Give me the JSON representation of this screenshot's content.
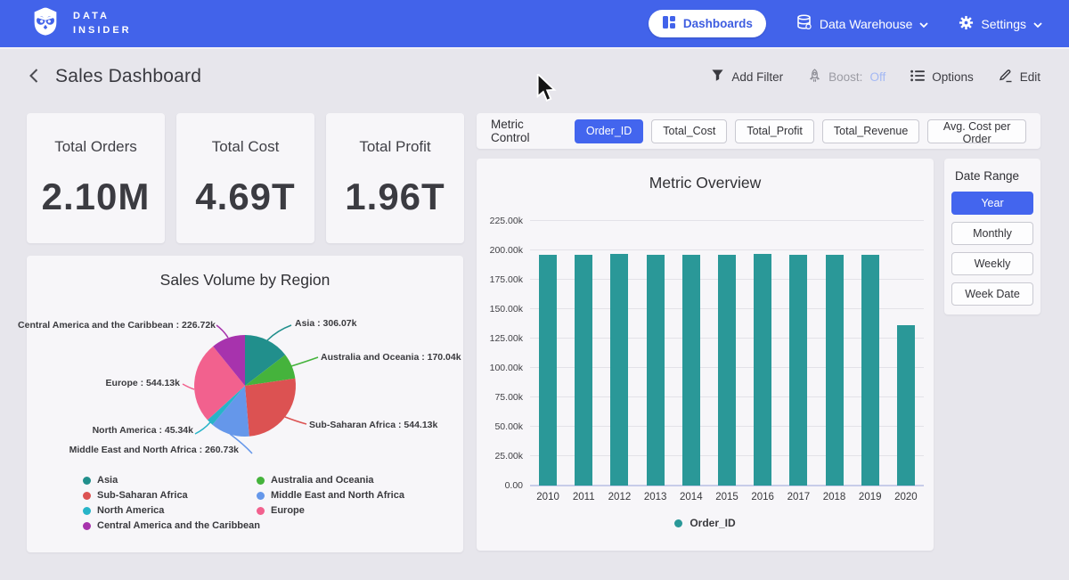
{
  "navbar": {
    "brand_line1": "DATA",
    "brand_line2": "INSIDER",
    "dashboards_label": "Dashboards",
    "data_warehouse_label": "Data Warehouse",
    "settings_label": "Settings"
  },
  "header": {
    "title": "Sales Dashboard",
    "add_filter_label": "Add Filter",
    "boost_label": "Boost:",
    "boost_value": "Off",
    "options_label": "Options",
    "edit_label": "Edit"
  },
  "kpis": [
    {
      "label": "Total Orders",
      "value": "2.10M"
    },
    {
      "label": "Total Cost",
      "value": "4.69T"
    },
    {
      "label": "Total Profit",
      "value": "1.96T"
    }
  ],
  "metric_control": {
    "label": "Metric Control",
    "options": [
      {
        "label": "Order_ID",
        "selected": true
      },
      {
        "label": "Total_Cost",
        "selected": false
      },
      {
        "label": "Total_Profit",
        "selected": false
      },
      {
        "label": "Total_Revenue",
        "selected": false
      },
      {
        "label": "Avg. Cost per Order",
        "selected": false
      }
    ]
  },
  "date_range": {
    "label": "Date Range",
    "options": [
      {
        "label": "Year",
        "selected": true
      },
      {
        "label": "Monthly",
        "selected": false
      },
      {
        "label": "Weekly",
        "selected": false
      },
      {
        "label": "Week Date",
        "selected": false
      }
    ]
  },
  "chart_data": [
    {
      "type": "pie",
      "title": "Sales Volume by Region",
      "unit": "k",
      "slices": [
        {
          "label": "Asia",
          "value": 306.07,
          "display": "Asia : 306.07k",
          "color": "#218f8c"
        },
        {
          "label": "Australia and Oceania",
          "value": 170.04,
          "display": "Australia and Oceania : 170.04k",
          "color": "#45b33c"
        },
        {
          "label": "Sub-Saharan Africa",
          "value": 544.13,
          "display": "Sub-Saharan Africa : 544.13k",
          "color": "#dc5252"
        },
        {
          "label": "Middle East and North Africa",
          "value": 260.73,
          "display": "Middle East and North Africa : 260.73k",
          "color": "#6597ea"
        },
        {
          "label": "North America",
          "value": 45.34,
          "display": "North America : 45.34k",
          "color": "#27b4c8"
        },
        {
          "label": "Europe",
          "value": 544.13,
          "display": "Europe : 544.13k",
          "color": "#f2618e"
        },
        {
          "label": "Central America and the Caribbean",
          "value": 226.72,
          "display": "Central America and the Caribbean : 226.72k",
          "color": "#a733ad"
        }
      ],
      "legend_columns": [
        [
          "Asia",
          "Sub-Saharan Africa",
          "North America",
          "Central America and the Caribbean"
        ],
        [
          "Australia and Oceania",
          "Middle East and North Africa",
          "Europe"
        ]
      ],
      "legend_position": "bottom"
    },
    {
      "type": "bar",
      "title": "Metric Overview",
      "categories": [
        "2010",
        "2011",
        "2012",
        "2013",
        "2014",
        "2015",
        "2016",
        "2017",
        "2018",
        "2019",
        "2020"
      ],
      "series": [
        {
          "name": "Order_ID",
          "color": "#2a9898",
          "values": [
            196.2,
            196.0,
            196.8,
            195.9,
            196.0,
            195.9,
            196.7,
            196.1,
            195.9,
            196.0,
            136.4
          ]
        }
      ],
      "unit": "k",
      "xlabel": "",
      "ylabel": "",
      "ylim": [
        0,
        225
      ],
      "ytick_step": 25,
      "yticks": [
        "0.00",
        "25.00k",
        "50.00k",
        "75.00k",
        "100.00k",
        "125.00k",
        "150.00k",
        "175.00k",
        "200.00k",
        "225.00k"
      ],
      "grid": true,
      "legend": "Order_ID",
      "legend_position": "bottom"
    }
  ],
  "colors": {
    "navbar": "#4263ea",
    "accent": "#4365ee",
    "page_bg": "#e7e6ec",
    "card_bg": "#f7f6f9",
    "bar_teal": "#2a9898"
  }
}
